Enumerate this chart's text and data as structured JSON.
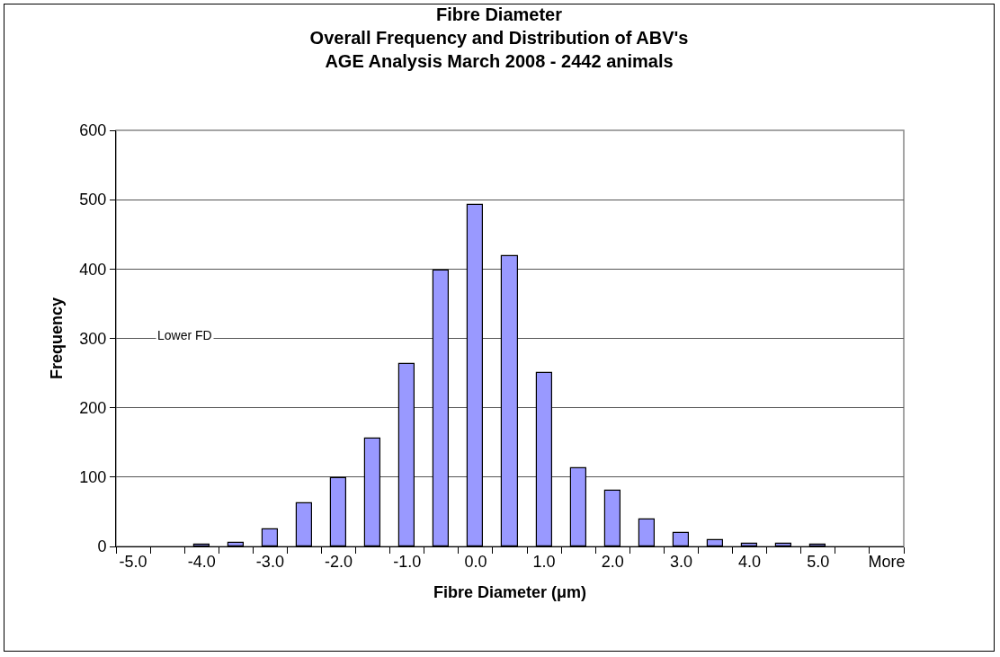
{
  "chart_data": {
    "type": "bar",
    "title": "Fibre Diameter\nOverall Frequency and Distribution of ABV's\nAGE Analysis March 2008 - 2442 animals",
    "xlabel": "Fibre Diameter (μm)",
    "ylabel": "Frequency",
    "categories": [
      "-5.0",
      null,
      "-4.0",
      null,
      "-3.0",
      null,
      "-2.0",
      null,
      "-1.0",
      null,
      "0.0",
      null,
      "1.0",
      null,
      "2.0",
      null,
      "3.0",
      null,
      "4.0",
      null,
      "5.0",
      null,
      "More"
    ],
    "values": [
      0,
      0,
      2,
      5,
      25,
      62,
      98,
      155,
      263,
      398,
      493,
      419,
      250,
      113,
      80,
      39,
      20,
      9,
      4,
      4,
      2,
      0,
      0
    ],
    "color": "#9999ff",
    "ylim": [
      0,
      600
    ],
    "yticks": [
      0,
      100,
      200,
      300,
      400,
      500,
      600
    ],
    "grid": "y",
    "legend": false,
    "annotations": [
      "Lower FD"
    ]
  }
}
